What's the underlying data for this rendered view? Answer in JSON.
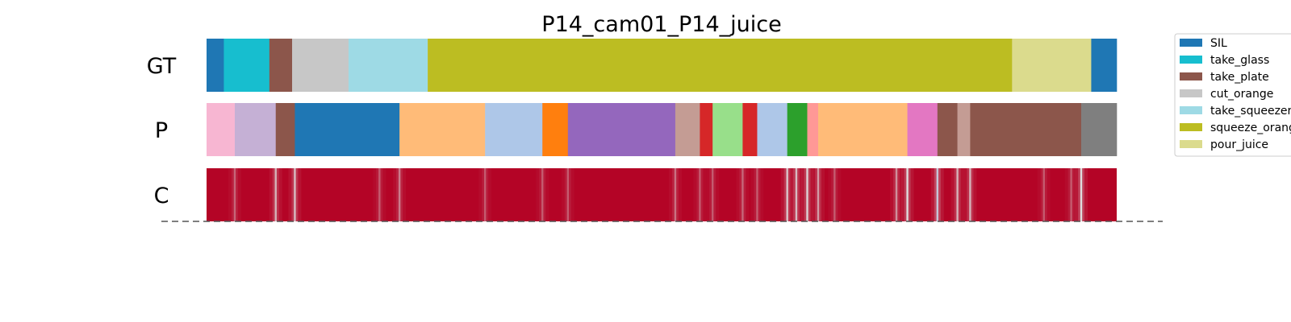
{
  "chart_data": {
    "type": "heatmap",
    "title": "P14_cam01_P14_juice",
    "x_range": [
      0,
      1
    ],
    "rows": [
      {
        "label": "GT",
        "segments": [
          {
            "start": 0.0,
            "end": 0.019,
            "class": "SIL"
          },
          {
            "start": 0.019,
            "end": 0.069,
            "class": "take_glass"
          },
          {
            "start": 0.069,
            "end": 0.094,
            "class": "take_plate"
          },
          {
            "start": 0.094,
            "end": 0.156,
            "class": "cut_orange"
          },
          {
            "start": 0.156,
            "end": 0.243,
            "class": "take_squeezer"
          },
          {
            "start": 0.243,
            "end": 0.885,
            "class": "squeeze_orange"
          },
          {
            "start": 0.885,
            "end": 0.972,
            "class": "pour_juice"
          },
          {
            "start": 0.972,
            "end": 1.0,
            "class": "SIL"
          }
        ]
      },
      {
        "label": "P",
        "segments": [
          {
            "start": 0.0,
            "end": 0.031,
            "color": "#f7b6d2"
          },
          {
            "start": 0.031,
            "end": 0.076,
            "color": "#c5b0d5"
          },
          {
            "start": 0.076,
            "end": 0.097,
            "color": "#8c564b"
          },
          {
            "start": 0.097,
            "end": 0.212,
            "color": "#1f77b4"
          },
          {
            "start": 0.212,
            "end": 0.306,
            "color": "#ffbb78"
          },
          {
            "start": 0.306,
            "end": 0.369,
            "color": "#aec7e8"
          },
          {
            "start": 0.369,
            "end": 0.397,
            "color": "#ff7f0e"
          },
          {
            "start": 0.397,
            "end": 0.515,
            "color": "#9467bd"
          },
          {
            "start": 0.515,
            "end": 0.542,
            "color": "#c49c94"
          },
          {
            "start": 0.542,
            "end": 0.556,
            "color": "#d62728"
          },
          {
            "start": 0.556,
            "end": 0.589,
            "color": "#98df8a"
          },
          {
            "start": 0.589,
            "end": 0.605,
            "color": "#d62728"
          },
          {
            "start": 0.605,
            "end": 0.638,
            "color": "#aec7e8"
          },
          {
            "start": 0.638,
            "end": 0.66,
            "color": "#2ca02c"
          },
          {
            "start": 0.66,
            "end": 0.672,
            "color": "#ff9896"
          },
          {
            "start": 0.672,
            "end": 0.77,
            "color": "#ffbb78"
          },
          {
            "start": 0.77,
            "end": 0.803,
            "color": "#e377c2"
          },
          {
            "start": 0.803,
            "end": 0.825,
            "color": "#8c564b"
          },
          {
            "start": 0.825,
            "end": 0.839,
            "color": "#c49c94"
          },
          {
            "start": 0.839,
            "end": 0.961,
            "color": "#8c564b"
          },
          {
            "start": 0.961,
            "end": 1.0,
            "color": "#7f7f7f"
          }
        ]
      },
      {
        "label": "C",
        "base_color": "#b40426",
        "dips": [
          {
            "pos": 0.031,
            "value": 0.55
          },
          {
            "pos": 0.076,
            "value": 0.2
          },
          {
            "pos": 0.097,
            "value": 0.15
          },
          {
            "pos": 0.19,
            "value": 0.6
          },
          {
            "pos": 0.212,
            "value": 0.45
          },
          {
            "pos": 0.306,
            "value": 0.6
          },
          {
            "pos": 0.369,
            "value": 0.6
          },
          {
            "pos": 0.397,
            "value": 0.6
          },
          {
            "pos": 0.515,
            "value": 0.5
          },
          {
            "pos": 0.542,
            "value": 0.6
          },
          {
            "pos": 0.556,
            "value": 0.6
          },
          {
            "pos": 0.589,
            "value": 0.55
          },
          {
            "pos": 0.605,
            "value": 0.6
          },
          {
            "pos": 0.638,
            "value": 0.1
          },
          {
            "pos": 0.648,
            "value": 0.15
          },
          {
            "pos": 0.66,
            "value": 0.05
          },
          {
            "pos": 0.672,
            "value": 0.3
          },
          {
            "pos": 0.69,
            "value": 0.6
          },
          {
            "pos": 0.758,
            "value": 0.35
          },
          {
            "pos": 0.77,
            "value": 0.0
          },
          {
            "pos": 0.803,
            "value": -0.15
          },
          {
            "pos": 0.825,
            "value": 0.2
          },
          {
            "pos": 0.839,
            "value": 0.2
          },
          {
            "pos": 0.92,
            "value": 0.6
          },
          {
            "pos": 0.95,
            "value": 0.6
          },
          {
            "pos": 0.961,
            "value": 0.0
          }
        ]
      }
    ],
    "legend": {
      "placement": "right",
      "entries": [
        {
          "label": "SIL",
          "color": "#1f77b4"
        },
        {
          "label": "take_glass",
          "color": "#17becf"
        },
        {
          "label": "take_plate",
          "color": "#8c564b"
        },
        {
          "label": "cut_orange",
          "color": "#c7c7c7"
        },
        {
          "label": "take_squeezer",
          "color": "#9edae5"
        },
        {
          "label": "squeeze_orange",
          "color": "#bcbd22"
        },
        {
          "label": "pour_juice",
          "color": "#dbdb8d"
        }
      ]
    }
  }
}
